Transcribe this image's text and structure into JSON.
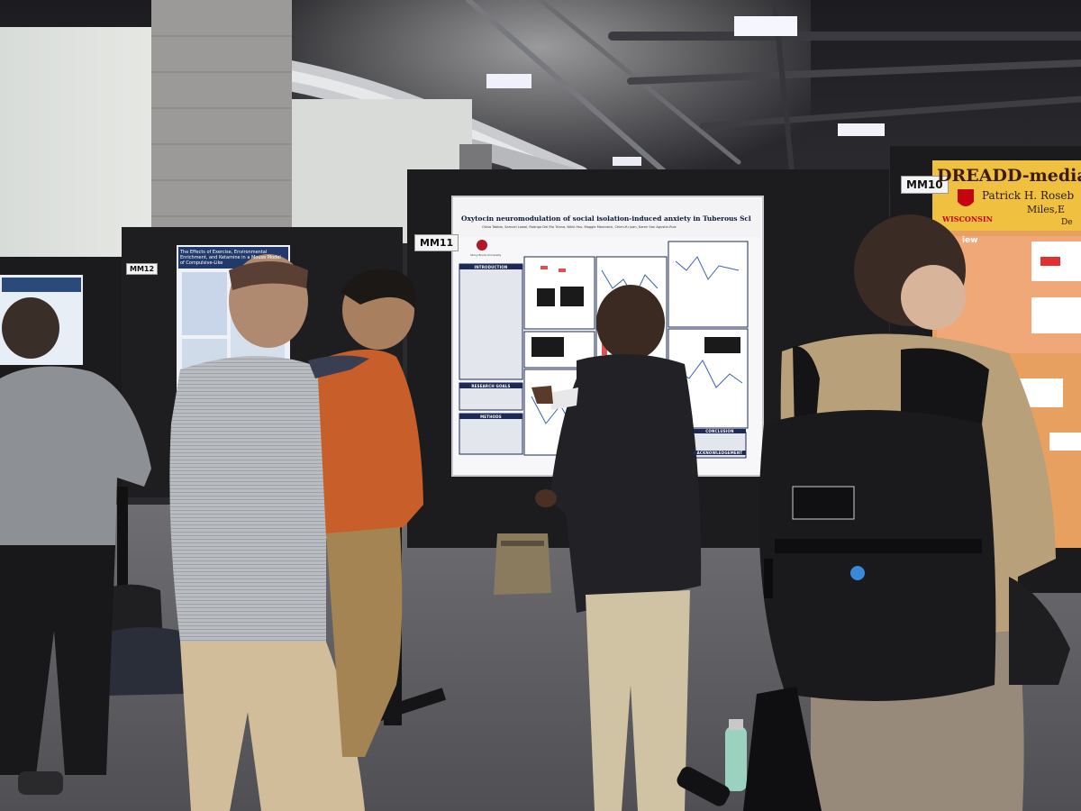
{
  "booth_labels": {
    "mm10": "MM10",
    "mm11": "MM11",
    "mm12": "MM12"
  },
  "center_poster": {
    "title": "Oxytocin neuromodulation of social isolation-induced anxiety in Tuberous Sclerosis Complex",
    "institution": "Stony Brook University",
    "authors": "Olivia Tabbia, Samuel Lawal, Rodrigo Del Rio Triana, Nikki Hsu, Maggie Mareneck, Chien-Yu Juan, Karen San Agustin-Ruiz",
    "sections": {
      "introduction": "INTRODUCTION",
      "research_goals": "RESEARCH GOALS",
      "methods": "METHODS",
      "conclusion": "CONCLUSION",
      "acknowledgement": "ACKNOWLEDGEMENT"
    }
  },
  "right_poster": {
    "title": "DREADD-mediated A",
    "authors_line1": "Patrick H. Roseb",
    "authors_line2": "Miles,E",
    "authors_line3": "De",
    "logo_text": "WISCONSIN",
    "section": "iew"
  },
  "left_poster": {
    "title": "The Effects of Exercise, Environmental Enrichment, and Ketamine in a Mouse Model of Compulsive-Like"
  },
  "colors": {
    "poster_navy": "#1c2a55",
    "wisconsin_red": "#c5050c",
    "right_poster_orange": "#e8a060",
    "carpet": "#5e5e62"
  }
}
